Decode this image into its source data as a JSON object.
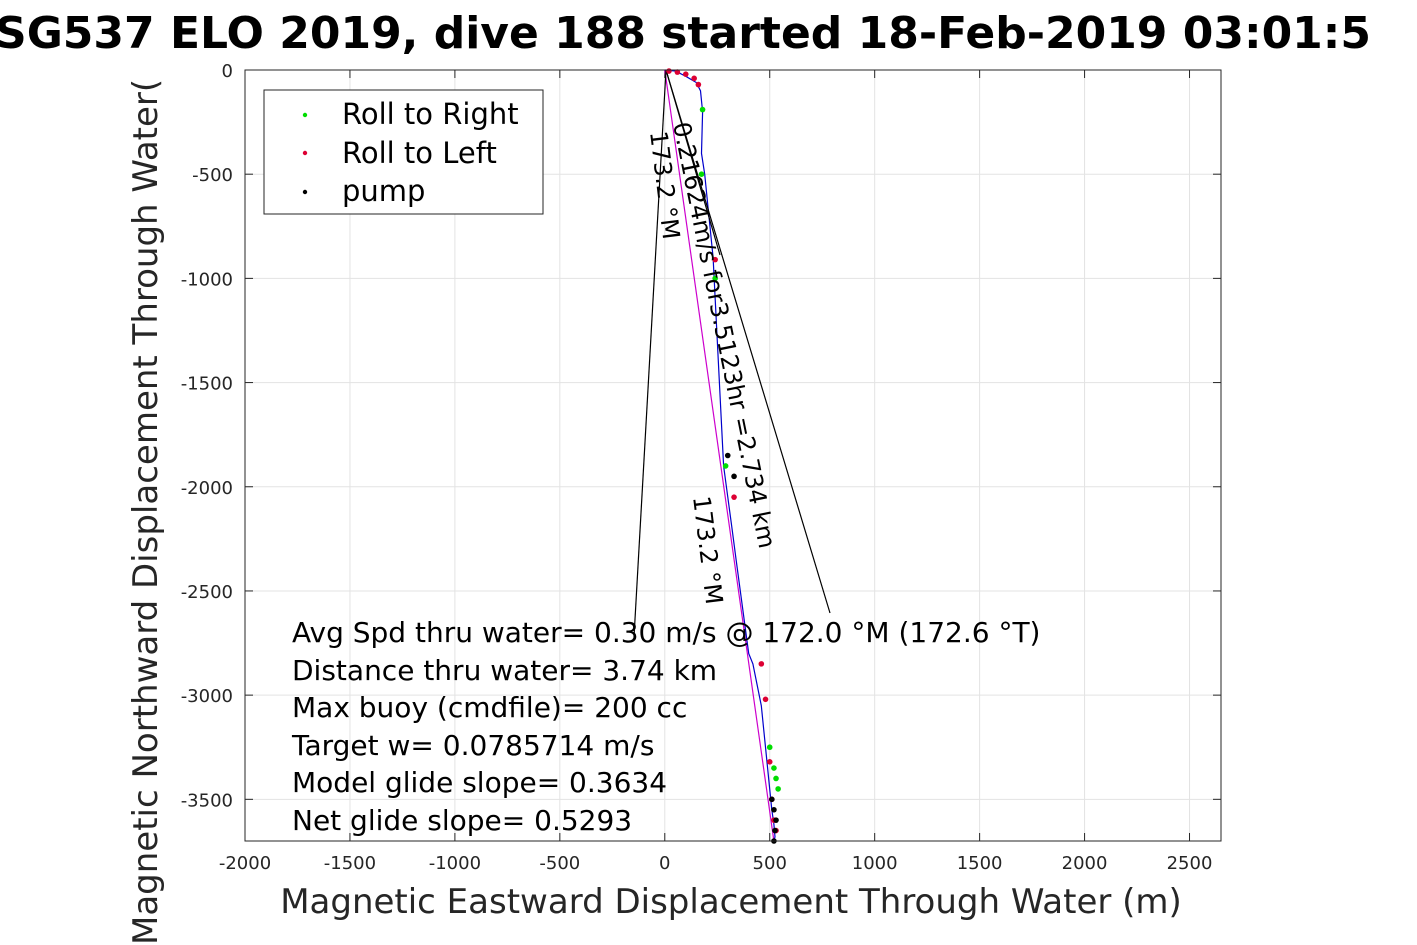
{
  "chart_data": {
    "type": "line",
    "title": "SG537 ELO 2019, dive 188 started 18-Feb-2019 03:01:5",
    "xlabel": "Magnetic Eastward Displacement Through Water (m)",
    "ylabel": "Magnetic Northward Displacement Through Water(",
    "xlim": [
      -2000,
      2650
    ],
    "ylim": [
      -3700,
      0
    ],
    "xticks": [
      -2000,
      -1500,
      -1000,
      -500,
      0,
      500,
      1000,
      1500,
      2000,
      2500
    ],
    "yticks": [
      0,
      -500,
      -1000,
      -1500,
      -2000,
      -2500,
      -3000,
      -3500
    ],
    "grid": true,
    "legend_position": "top-left",
    "legend": [
      {
        "label": "Roll to Right",
        "color": "#00dd00"
      },
      {
        "label": "Roll to Left",
        "color": "#dd0033"
      },
      {
        "label": "pump",
        "color": "#000000"
      }
    ],
    "series": [
      {
        "color": "#0000cc",
        "x": [
          0,
          50,
          100,
          150,
          170,
          180,
          175,
          190,
          210,
          230,
          240,
          250,
          260,
          270,
          280,
          300,
          320,
          340,
          360,
          380,
          400,
          420,
          440,
          460,
          470,
          480,
          490,
          500,
          510,
          520,
          525,
          520
        ],
        "y": [
          0,
          -5,
          -30,
          -60,
          -100,
          -200,
          -400,
          -500,
          -700,
          -900,
          -1100,
          -1300,
          -1500,
          -1700,
          -1900,
          -2050,
          -2200,
          -2350,
          -2500,
          -2650,
          -2800,
          -2850,
          -2950,
          -3050,
          -3150,
          -3250,
          -3350,
          -3450,
          -3550,
          -3620,
          -3680,
          -3700
        ]
      },
      {
        "color": "#cc00cc",
        "x": [
          0,
          520
        ],
        "y": [
          0,
          -3700
        ]
      }
    ],
    "roll_right": {
      "color": "#00dd00",
      "x": [
        180,
        175,
        240,
        290,
        500,
        520,
        530,
        540
      ],
      "y": [
        -190,
        -500,
        -1000,
        -1900,
        -3250,
        -3350,
        -3400,
        -3450
      ]
    },
    "roll_left": {
      "color": "#dd0033",
      "x": [
        20,
        60,
        100,
        140,
        160,
        240,
        330,
        460,
        480,
        500,
        510,
        520,
        530
      ],
      "y": [
        -5,
        -10,
        -20,
        -40,
        -70,
        -910,
        -2050,
        -2850,
        -3020,
        -3320,
        -3500,
        -3600,
        -3650
      ]
    },
    "pump": {
      "color": "#000000",
      "x": [
        300,
        330,
        510,
        520,
        530,
        525,
        520
      ],
      "y": [
        -1850,
        -1950,
        -3500,
        -3550,
        -3600,
        -3650,
        -3700
      ]
    },
    "annotations": {
      "lines": [
        "Avg Spd thru water=  0.30 m/s @ 172.0 °M (172.6 °T)",
        "Distance thru water=  3.74 km",
        "Max buoy (cmdfile)= 200 cc",
        "Target w= 0.0785714 m/s",
        "Model glide slope= 0.3634",
        "Net glide slope= 0.5293"
      ],
      "current_label": "0.21624m/s for3.5123hr =2.734 km",
      "heading_top": "173.2 °M",
      "heading_mid": "173.2 °M"
    }
  }
}
